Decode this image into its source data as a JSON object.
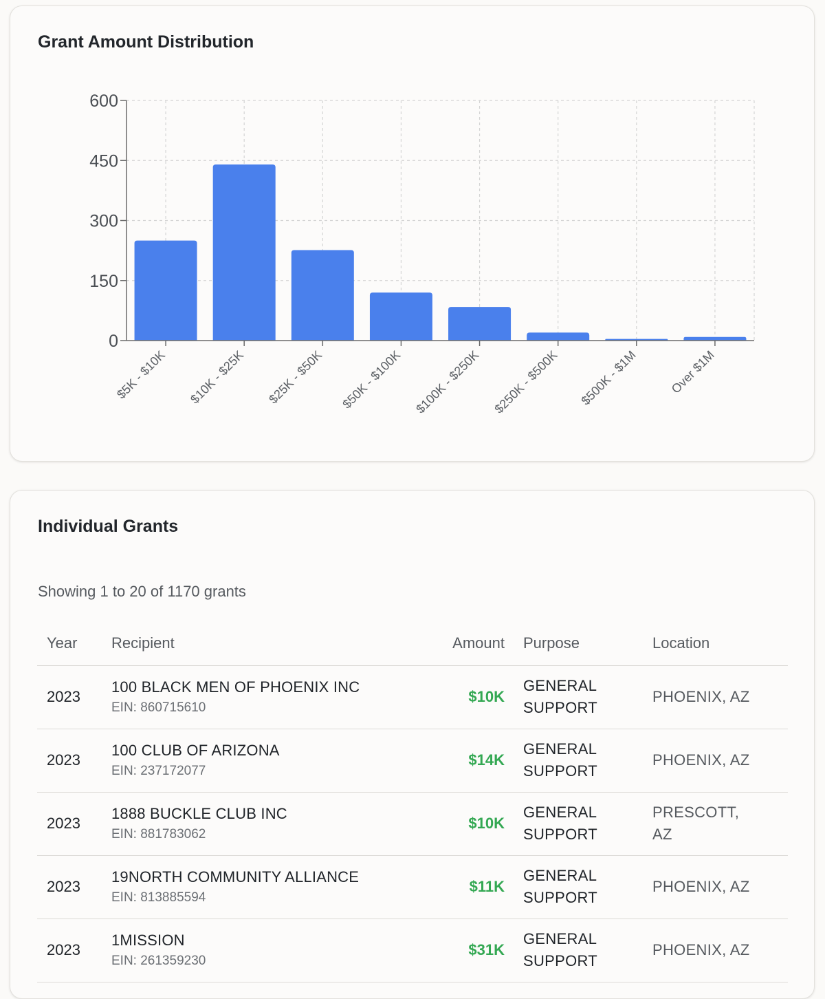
{
  "chart_card": {
    "title": "Grant Amount Distribution"
  },
  "chart_data": {
    "type": "bar",
    "title": "Grant Amount Distribution",
    "categories": [
      "$5K - $10K",
      "$10K - $25K",
      "$25K - $50K",
      "$50K - $100K",
      "$100K - $250K",
      "$250K - $500K",
      "$500K - $1M",
      "Over $1M"
    ],
    "values": [
      250,
      440,
      226,
      120,
      84,
      20,
      4,
      9
    ],
    "yticks": [
      0,
      150,
      300,
      450,
      600
    ],
    "ylim": [
      0,
      600
    ],
    "grid": true,
    "bar_color": "#4a80ec"
  },
  "grants_card": {
    "title": "Individual Grants",
    "showing_text": "Showing 1 to 20 of 1170 grants",
    "columns": {
      "year": "Year",
      "recipient": "Recipient",
      "amount": "Amount",
      "purpose": "Purpose",
      "location": "Location"
    },
    "rows": [
      {
        "year": "2023",
        "name": "100 BLACK MEN OF PHOENIX INC",
        "ein": "EIN: 860715610",
        "amount": "$10K",
        "purpose": "GENERAL SUPPORT",
        "location": "PHOENIX, AZ"
      },
      {
        "year": "2023",
        "name": "100 CLUB OF ARIZONA",
        "ein": "EIN: 237172077",
        "amount": "$14K",
        "purpose": "GENERAL SUPPORT",
        "location": "PHOENIX, AZ"
      },
      {
        "year": "2023",
        "name": "1888 BUCKLE CLUB INC",
        "ein": "EIN: 881783062",
        "amount": "$10K",
        "purpose": "GENERAL SUPPORT",
        "location": "PRESCOTT, AZ"
      },
      {
        "year": "2023",
        "name": "19NORTH COMMUNITY ALLIANCE",
        "ein": "EIN: 813885594",
        "amount": "$11K",
        "purpose": "GENERAL SUPPORT",
        "location": "PHOENIX, AZ"
      },
      {
        "year": "2023",
        "name": "1MISSION",
        "ein": "EIN: 261359230",
        "amount": "$31K",
        "purpose": "GENERAL SUPPORT",
        "location": "PHOENIX, AZ"
      }
    ]
  },
  "colors": {
    "amount_green": "#34a853",
    "bar_blue": "#4a80ec"
  }
}
